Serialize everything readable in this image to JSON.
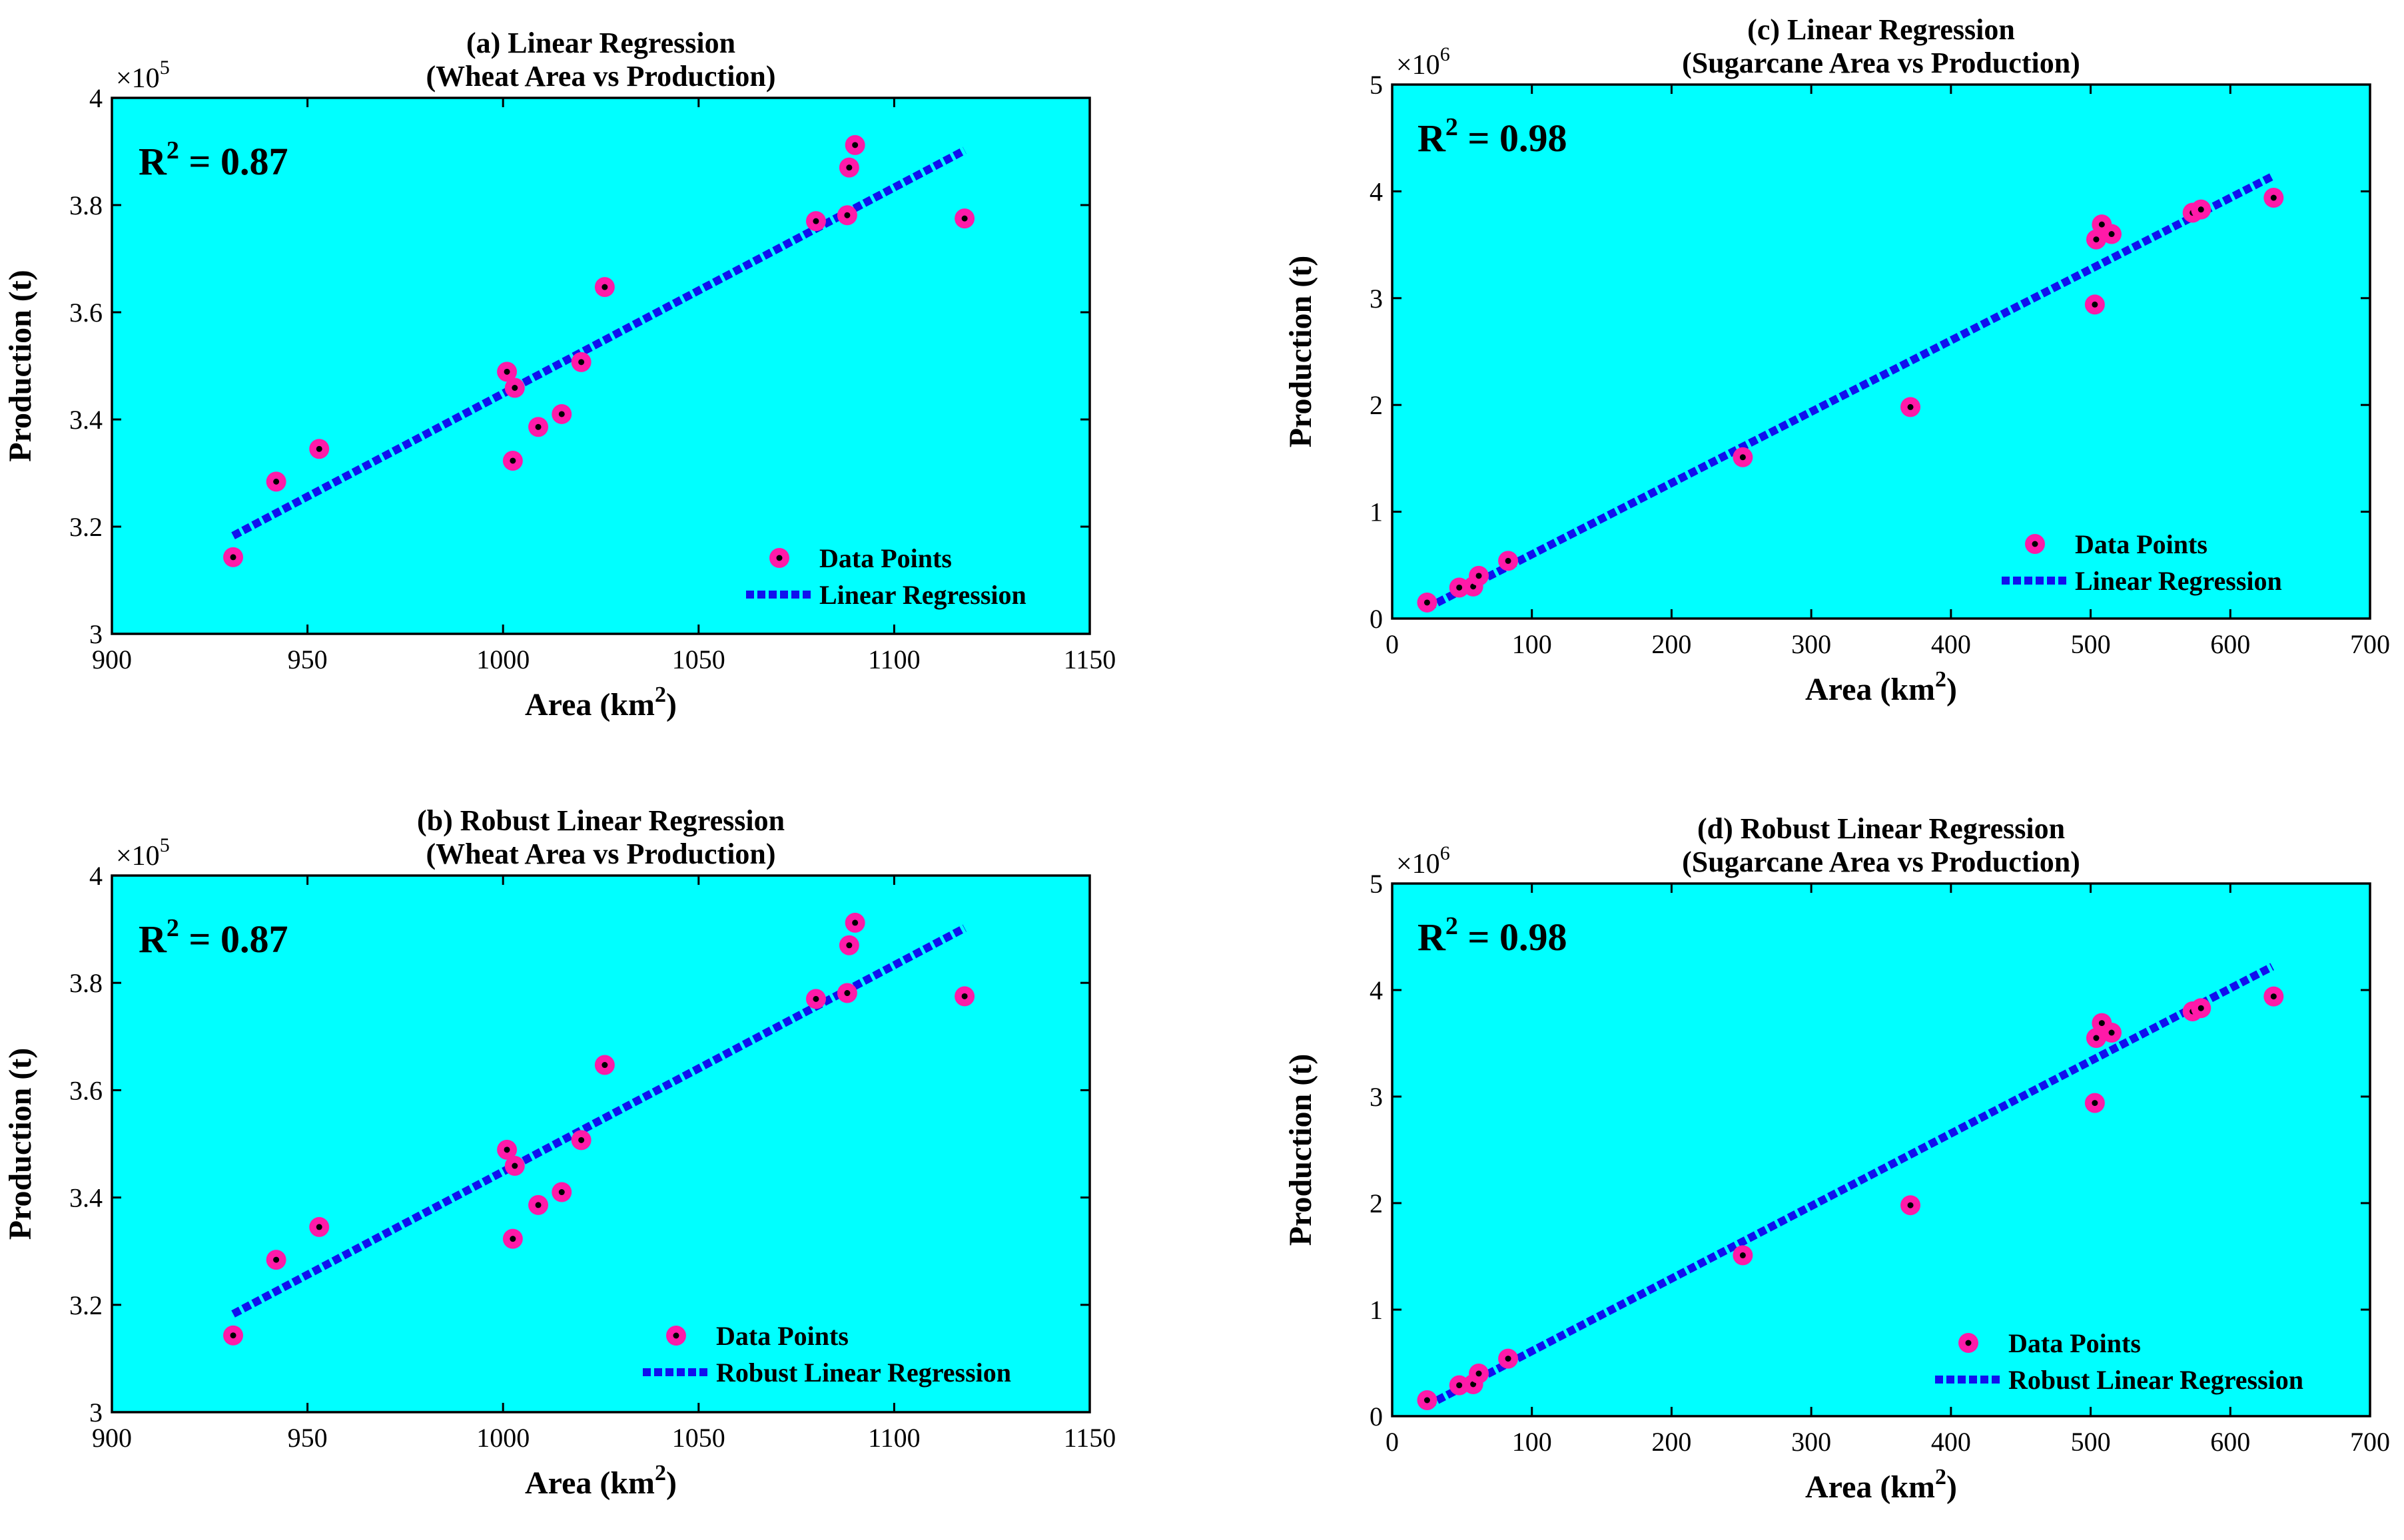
{
  "colors": {
    "plot_bg": "#00ffff",
    "point_fill": "#ff1aa8",
    "point_center": "#000000",
    "line": "#1010ee"
  },
  "chart_data": [
    {
      "type": "scatter",
      "title": [
        "(a) Linear Regression",
        "(Wheat Area vs Production)"
      ],
      "xlabel": "Area (km",
      "xlabel_sup": "2",
      "xlabel_tail": ")",
      "ylabel": "Production (t)",
      "y_multiplier": {
        "base": "×10",
        "exp": "5"
      },
      "r2": {
        "label": "R",
        "sup": "2",
        "value": " = 0.87"
      },
      "xlim": [
        900,
        1150
      ],
      "xticks": [
        900,
        950,
        1000,
        1050,
        1100,
        1150
      ],
      "ylim": [
        3.0,
        4.0
      ],
      "yticks": [
        "3",
        "3.2",
        "3.4",
        "3.6",
        "3.8",
        "4"
      ],
      "points": [
        [
          931,
          3.143
        ],
        [
          942,
          3.284
        ],
        [
          953,
          3.345
        ],
        [
          1001,
          3.489
        ],
        [
          1003,
          3.459
        ],
        [
          1002.5,
          3.323
        ],
        [
          1009,
          3.386
        ],
        [
          1015,
          3.41
        ],
        [
          1020,
          3.507
        ],
        [
          1026,
          3.647
        ],
        [
          1080,
          3.77
        ],
        [
          1088,
          3.781
        ],
        [
          1088.5,
          3.87
        ],
        [
          1090,
          3.912
        ],
        [
          1118,
          3.775
        ]
      ],
      "line": {
        "x": [
          931,
          1118
        ],
        "y": [
          3.183,
          3.902
        ]
      },
      "legend": {
        "points": "Data Points",
        "line": "Linear Regression"
      }
    },
    {
      "type": "scatter",
      "title": [
        "(b) Robust Linear Regression",
        "(Wheat Area vs Production)"
      ],
      "xlabel": "Area (km",
      "xlabel_sup": "2",
      "xlabel_tail": ")",
      "ylabel": "Production (t)",
      "y_multiplier": {
        "base": "×10",
        "exp": "5"
      },
      "r2": {
        "label": "R",
        "sup": "2",
        "value": " = 0.87"
      },
      "xlim": [
        900,
        1150
      ],
      "xticks": [
        900,
        950,
        1000,
        1050,
        1100,
        1150
      ],
      "ylim": [
        3.0,
        4.0
      ],
      "yticks": [
        "3",
        "3.2",
        "3.4",
        "3.6",
        "3.8",
        "4"
      ],
      "points": [
        [
          931,
          3.143
        ],
        [
          942,
          3.284
        ],
        [
          953,
          3.345
        ],
        [
          1001,
          3.489
        ],
        [
          1003,
          3.459
        ],
        [
          1002.5,
          3.323
        ],
        [
          1009,
          3.386
        ],
        [
          1015,
          3.41
        ],
        [
          1020,
          3.507
        ],
        [
          1026,
          3.647
        ],
        [
          1080,
          3.77
        ],
        [
          1088,
          3.781
        ],
        [
          1088.5,
          3.87
        ],
        [
          1090,
          3.912
        ],
        [
          1118,
          3.775
        ]
      ],
      "line": {
        "x": [
          931,
          1118
        ],
        "y": [
          3.183,
          3.902
        ]
      },
      "legend": {
        "points": "Data Points",
        "line": "Robust Linear Regression"
      }
    },
    {
      "type": "scatter",
      "title": [
        "(c) Linear Regression",
        "(Sugarcane Area vs Production)"
      ],
      "xlabel": "Area (km",
      "xlabel_sup": "2",
      "xlabel_tail": ")",
      "ylabel": "Production (t)",
      "y_multiplier": {
        "base": "×10",
        "exp": "6"
      },
      "r2": {
        "label": "R",
        "sup": "2",
        "value": " = 0.98"
      },
      "xlim": [
        0,
        700
      ],
      "xticks": [
        0,
        100,
        200,
        300,
        400,
        500,
        600,
        700
      ],
      "ylim": [
        0,
        5
      ],
      "yticks": [
        "0",
        "1",
        "2",
        "3",
        "4",
        "5"
      ],
      "points": [
        [
          25,
          0.15
        ],
        [
          48,
          0.29
        ],
        [
          58,
          0.3
        ],
        [
          62,
          0.4
        ],
        [
          83,
          0.54
        ],
        [
          251,
          1.51
        ],
        [
          371,
          1.98
        ],
        [
          503,
          2.94
        ],
        [
          504,
          3.55
        ],
        [
          508,
          3.69
        ],
        [
          515,
          3.6
        ],
        [
          573,
          3.8
        ],
        [
          579,
          3.83
        ],
        [
          631,
          3.94
        ]
      ],
      "line": {
        "x": [
          25,
          630
        ],
        "y": [
          0.1,
          4.14
        ]
      },
      "legend": {
        "points": "Data Points",
        "line": "Linear Regression"
      }
    },
    {
      "type": "scatter",
      "title": [
        "(d) Robust Linear Regression",
        "(Sugarcane Area vs Production)"
      ],
      "xlabel": "Area (km",
      "xlabel_sup": "2",
      "xlabel_tail": ")",
      "ylabel": "Production (t)",
      "y_multiplier": {
        "base": "×10",
        "exp": "6"
      },
      "r2": {
        "label": "R",
        "sup": "2",
        "value": " = 0.98"
      },
      "xlim": [
        0,
        700
      ],
      "xticks": [
        0,
        100,
        200,
        300,
        400,
        500,
        600,
        700
      ],
      "ylim": [
        0,
        5
      ],
      "yticks": [
        "0",
        "1",
        "2",
        "3",
        "4",
        "5"
      ],
      "points": [
        [
          25,
          0.15
        ],
        [
          48,
          0.29
        ],
        [
          58,
          0.3
        ],
        [
          62,
          0.4
        ],
        [
          83,
          0.54
        ],
        [
          251,
          1.51
        ],
        [
          371,
          1.98
        ],
        [
          503,
          2.94
        ],
        [
          504,
          3.55
        ],
        [
          508,
          3.69
        ],
        [
          515,
          3.6
        ],
        [
          573,
          3.8
        ],
        [
          579,
          3.83
        ],
        [
          631,
          3.94
        ]
      ],
      "line": {
        "x": [
          25,
          630
        ],
        "y": [
          0.1,
          4.22
        ]
      },
      "legend": {
        "points": "Data Points",
        "line": "Robust Linear Regression"
      }
    }
  ]
}
